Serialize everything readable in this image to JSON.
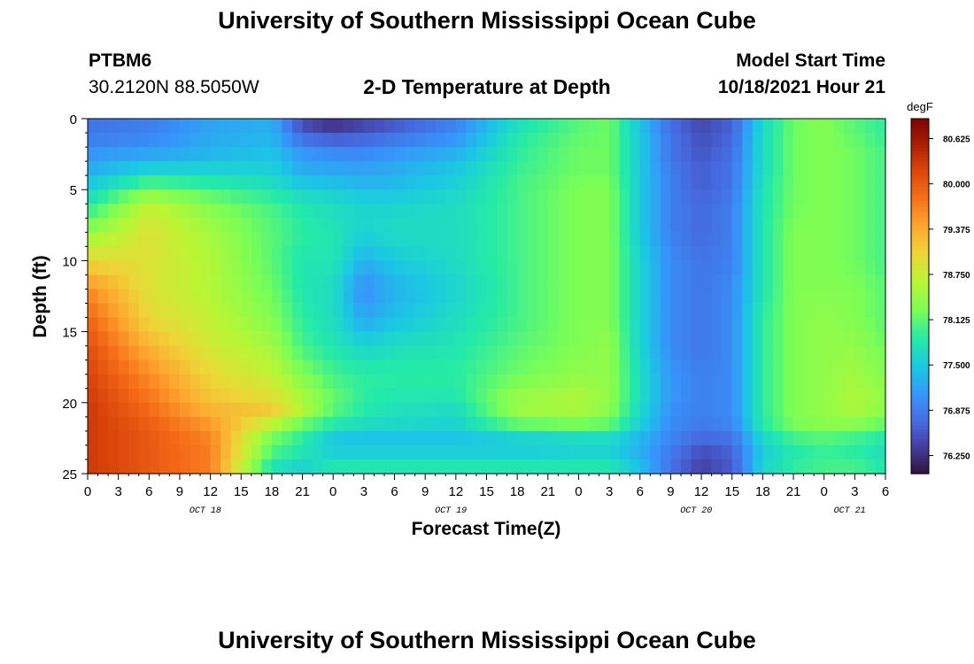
{
  "header": {
    "title": "University of Southern Mississippi Ocean Cube",
    "station": "PTBM6",
    "coords": "30.2120N  88.5050W",
    "subtitle": "2-D Temperature at Depth",
    "model_label": "Model Start Time",
    "model_time": "10/18/2021 Hour 21"
  },
  "footer": {
    "title": "University of Southern Mississippi Ocean Cube"
  },
  "chart_data": {
    "type": "heatmap",
    "xlabel": "Forecast Time(Z)",
    "ylabel": "Depth (ft)",
    "x_range": [
      0,
      78
    ],
    "y_range": [
      0,
      25
    ],
    "y_inverted": true,
    "x_ticks": [
      "0",
      "3",
      "6",
      "9",
      "12",
      "15",
      "18",
      "21",
      "0",
      "3",
      "6",
      "9",
      "12",
      "15",
      "18",
      "21",
      "0",
      "3",
      "6",
      "9",
      "12",
      "15",
      "18",
      "21",
      "0",
      "3",
      "6"
    ],
    "y_ticks": [
      "0",
      "5",
      "10",
      "15",
      "20",
      "25"
    ],
    "date_labels": [
      {
        "label": "OCT 18",
        "hour": 11.5
      },
      {
        "label": "OCT 19",
        "hour": 35.5
      },
      {
        "label": "OCT 20",
        "hour": 59.5
      },
      {
        "label": "OCT 21",
        "hour": 74.5
      }
    ],
    "colorbar": {
      "unit": "degF",
      "min": 76.0,
      "max": 80.9,
      "ticks": [
        "80.625",
        "80.000",
        "79.375",
        "78.750",
        "78.125",
        "77.500",
        "76.875",
        "76.250"
      ],
      "tick_values": [
        80.625,
        80.0,
        79.375,
        78.75,
        78.125,
        77.5,
        76.875,
        76.25
      ]
    },
    "grid_hours": [
      0,
      6,
      12,
      18,
      21,
      24,
      27,
      30,
      36,
      42,
      48,
      51,
      54,
      57,
      60,
      63,
      66,
      69,
      72,
      75,
      78
    ],
    "grid_depths": [
      0,
      1,
      2,
      3,
      4,
      5,
      6,
      8,
      10,
      12,
      14,
      16,
      18,
      20,
      21,
      22,
      23,
      24,
      25
    ],
    "values": [
      [
        76.8,
        76.9,
        77.2,
        77.3,
        76.4,
        76.2,
        76.4,
        76.5,
        76.9,
        77.7,
        78.1,
        78.2,
        77.4,
        76.7,
        76.4,
        76.6,
        77.6,
        78.2,
        78.3,
        78.1,
        77.9
      ],
      [
        76.8,
        76.9,
        77.2,
        77.3,
        76.6,
        76.4,
        76.5,
        76.7,
        77.0,
        77.8,
        78.1,
        78.2,
        77.5,
        76.8,
        76.5,
        76.7,
        77.7,
        78.2,
        78.3,
        78.1,
        77.9
      ],
      [
        77.0,
        77.1,
        77.3,
        77.4,
        77.0,
        76.9,
        76.9,
        77.0,
        77.2,
        77.9,
        78.2,
        78.2,
        77.5,
        76.8,
        76.5,
        76.7,
        77.7,
        78.2,
        78.3,
        78.2,
        78.0
      ],
      [
        77.2,
        77.3,
        77.4,
        77.5,
        77.2,
        77.1,
        77.1,
        77.2,
        77.4,
        77.9,
        78.2,
        78.2,
        77.5,
        76.8,
        76.6,
        76.8,
        77.7,
        78.2,
        78.3,
        78.2,
        78.0
      ],
      [
        77.3,
        77.8,
        77.7,
        77.6,
        77.3,
        77.3,
        77.2,
        77.3,
        77.5,
        78.0,
        78.2,
        78.2,
        77.5,
        76.9,
        76.6,
        76.8,
        77.7,
        78.2,
        78.3,
        78.2,
        78.0
      ],
      [
        77.6,
        78.2,
        78.0,
        77.8,
        77.6,
        77.5,
        77.4,
        77.4,
        77.6,
        78.0,
        78.3,
        78.3,
        77.5,
        76.9,
        76.6,
        76.8,
        77.8,
        78.2,
        78.3,
        78.2,
        78.0
      ],
      [
        77.8,
        78.7,
        78.3,
        78.0,
        77.8,
        77.7,
        77.6,
        77.6,
        77.7,
        78.0,
        78.3,
        78.3,
        77.5,
        76.9,
        76.7,
        76.9,
        77.8,
        78.2,
        78.3,
        78.2,
        78.0
      ],
      [
        78.4,
        78.9,
        78.5,
        78.1,
        77.9,
        77.8,
        77.6,
        77.7,
        77.7,
        78.0,
        78.3,
        78.3,
        77.5,
        76.9,
        76.7,
        76.9,
        77.8,
        78.3,
        78.3,
        78.2,
        78.0
      ],
      [
        79.0,
        78.9,
        78.6,
        78.1,
        77.8,
        77.8,
        77.3,
        77.5,
        77.7,
        78.0,
        78.3,
        78.3,
        77.6,
        77.0,
        76.8,
        76.9,
        77.8,
        78.3,
        78.3,
        78.2,
        78.0
      ],
      [
        79.6,
        78.9,
        78.6,
        78.2,
        77.8,
        77.7,
        77.0,
        77.3,
        77.6,
        78.0,
        78.3,
        78.3,
        77.6,
        77.0,
        76.8,
        77.0,
        77.8,
        78.3,
        78.3,
        78.3,
        78.1
      ],
      [
        79.9,
        79.0,
        78.7,
        78.3,
        77.9,
        77.7,
        77.2,
        77.4,
        77.7,
        78.0,
        78.3,
        78.3,
        77.6,
        77.0,
        76.8,
        77.0,
        77.9,
        78.3,
        78.4,
        78.3,
        78.1
      ],
      [
        80.1,
        79.3,
        78.8,
        78.5,
        78.0,
        77.8,
        77.6,
        77.7,
        77.8,
        78.1,
        78.3,
        78.4,
        77.6,
        77.0,
        76.8,
        77.0,
        77.9,
        78.3,
        78.4,
        78.4,
        78.2
      ],
      [
        80.2,
        79.6,
        79.0,
        78.7,
        78.3,
        78.0,
        77.9,
        77.9,
        77.9,
        78.2,
        78.4,
        78.4,
        77.7,
        77.1,
        76.9,
        77.0,
        77.9,
        78.3,
        78.4,
        78.5,
        78.3
      ],
      [
        80.3,
        79.8,
        79.2,
        79.0,
        78.6,
        78.2,
        77.9,
        77.8,
        77.8,
        78.5,
        78.6,
        78.4,
        77.7,
        77.1,
        76.9,
        77.0,
        77.9,
        78.3,
        78.4,
        78.6,
        78.4
      ],
      [
        80.3,
        79.9,
        79.4,
        79.2,
        78.6,
        78.0,
        77.8,
        77.7,
        77.6,
        78.4,
        78.5,
        78.3,
        77.6,
        77.0,
        76.9,
        77.0,
        77.9,
        78.3,
        78.4,
        78.5,
        78.3
      ],
      [
        80.3,
        80.0,
        79.6,
        78.2,
        77.8,
        77.7,
        77.6,
        77.6,
        77.6,
        77.9,
        78.0,
        78.0,
        77.5,
        77.0,
        76.8,
        76.9,
        77.8,
        78.2,
        78.3,
        78.2,
        78.0
      ],
      [
        80.3,
        80.0,
        79.7,
        78.3,
        78.0,
        77.3,
        77.3,
        77.3,
        77.3,
        77.3,
        77.4,
        77.4,
        77.2,
        76.9,
        76.6,
        76.7,
        77.5,
        77.8,
        77.9,
        77.8,
        77.7
      ],
      [
        80.3,
        80.0,
        79.7,
        77.8,
        77.6,
        77.8,
        77.8,
        77.8,
        77.8,
        77.8,
        77.8,
        77.8,
        77.4,
        76.8,
        76.4,
        76.6,
        77.6,
        77.9,
        78.0,
        78.0,
        77.8
      ],
      [
        80.3,
        80.0,
        79.7,
        77.8,
        77.6,
        77.8,
        77.8,
        77.8,
        77.8,
        77.8,
        77.8,
        77.8,
        77.4,
        76.8,
        76.4,
        76.6,
        77.6,
        77.9,
        78.0,
        78.0,
        77.8
      ]
    ]
  }
}
